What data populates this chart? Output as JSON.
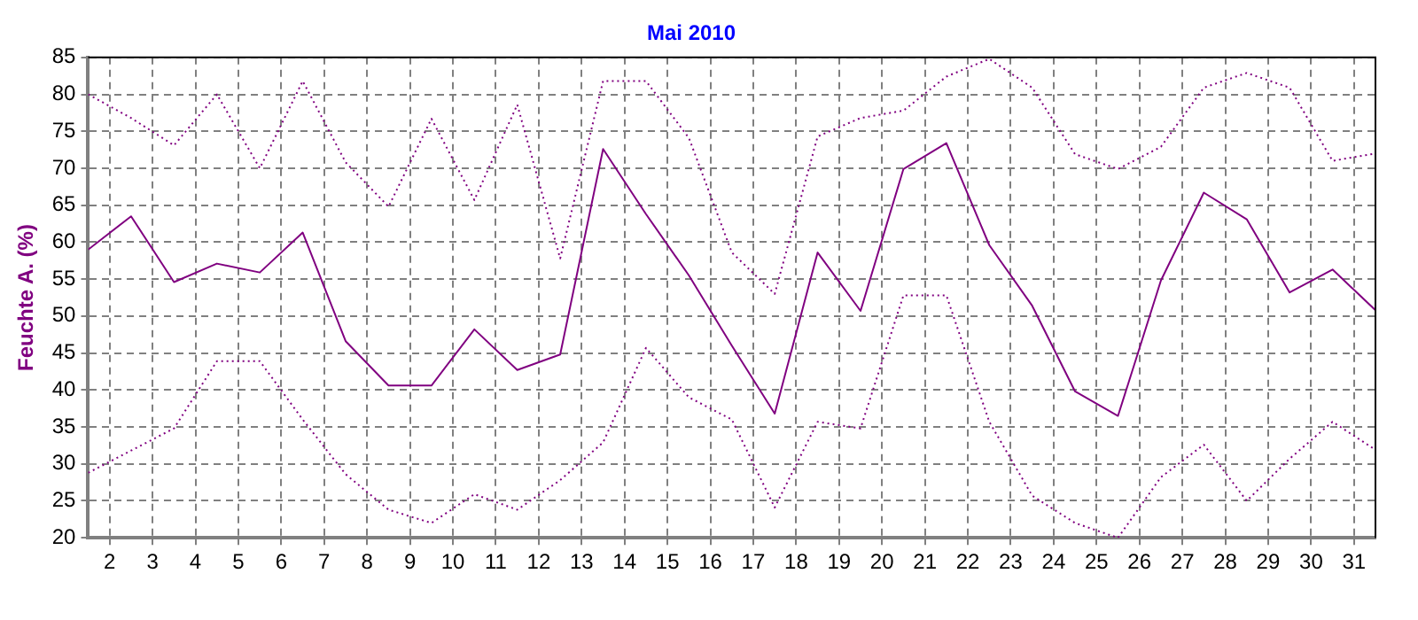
{
  "chart_data": {
    "type": "line",
    "title": "Mai 2010",
    "ylabel": "Feuchte A. (%)",
    "x": [
      1.5,
      2.5,
      3.5,
      4.5,
      5.5,
      6.5,
      7.5,
      8.5,
      9.5,
      10.5,
      11.5,
      12.5,
      13.5,
      14.5,
      15.5,
      16.5,
      17.5,
      18.5,
      19.5,
      20.5,
      21.5,
      22.5,
      23.5,
      24.5,
      25.5,
      26.5,
      27.5,
      28.5,
      29.5,
      30.5,
      31.5
    ],
    "series": [
      {
        "color": "#800080",
        "line_style": "dotted",
        "values": [
          80,
          76.8,
          73.1,
          80,
          70,
          81.8,
          70.8,
          64.8,
          76.7,
          65.7,
          78.6,
          57.8,
          81.8,
          81.8,
          74.1,
          58.6,
          53,
          74.3,
          76.8,
          77.8,
          82.4,
          84.8,
          80.9,
          71.9,
          69.9,
          72.9,
          80.9,
          82.9,
          80.9,
          71,
          72
        ]
      },
      {
        "color": "#800080",
        "line_style": "solid",
        "values": [
          59,
          63.5,
          54.6,
          57.1,
          55.9,
          61.3,
          46.6,
          40.6,
          40.6,
          48.2,
          42.7,
          44.8,
          72.6,
          63.8,
          55.5,
          46,
          36.8,
          58.6,
          50.7,
          69.9,
          73.4,
          59.6,
          51.4,
          39.8,
          36.5,
          54.8,
          66.7,
          63.1,
          53.2,
          56.3,
          50.8
        ]
      },
      {
        "color": "#800080",
        "line_style": "dotted",
        "values": [
          28.8,
          31.8,
          34.8,
          43.9,
          43.9,
          36,
          28.6,
          23.8,
          22,
          25.9,
          23.8,
          27.8,
          32.9,
          45.7,
          39,
          36,
          24.1,
          35.7,
          34.8,
          52.8,
          52.8,
          35.7,
          25.7,
          22,
          20,
          28.2,
          32.6,
          25,
          30.7,
          35.7,
          31.9
        ]
      }
    ],
    "xlim": [
      1.5,
      31.5
    ],
    "xticks": [
      2,
      3,
      4,
      5,
      6,
      7,
      8,
      9,
      10,
      11,
      12,
      13,
      14,
      15,
      16,
      17,
      18,
      19,
      20,
      21,
      22,
      23,
      24,
      25,
      26,
      27,
      28,
      29,
      30,
      31
    ],
    "ylim": [
      20,
      85
    ],
    "yticks": [
      20,
      25,
      30,
      35,
      40,
      45,
      50,
      55,
      60,
      65,
      70,
      75,
      80,
      85
    ],
    "grid": true,
    "legend": false,
    "marker": "none"
  }
}
